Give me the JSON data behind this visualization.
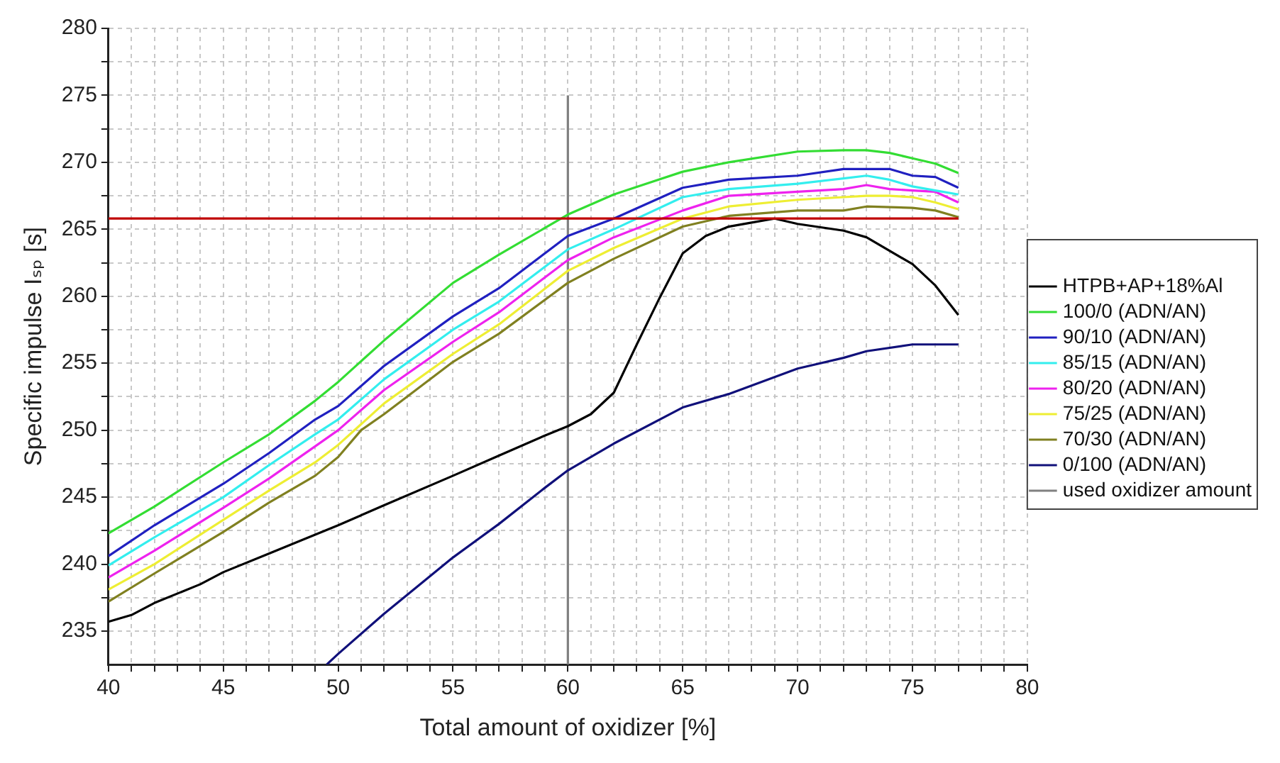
{
  "chart_data": {
    "type": "line",
    "xlabel": "Total amount of oxidizer [%]",
    "ylabel": "Specific impulse Iₛₚ [s]",
    "xlim": [
      40,
      80
    ],
    "ylim": [
      232.5,
      280
    ],
    "xticks": [
      40,
      {
        "value": 41,
        "label": null
      },
      {
        "value": 42,
        "label": null
      },
      {
        "value": 43,
        "label": null
      },
      {
        "value": 44,
        "label": null
      },
      45,
      {
        "value": 46,
        "label": null
      },
      {
        "value": 47,
        "label": null
      },
      {
        "value": 48,
        "label": null
      },
      {
        "value": 49,
        "label": null
      },
      50,
      {
        "value": 51,
        "label": null
      },
      {
        "value": 52,
        "label": null
      },
      {
        "value": 53,
        "label": null
      },
      {
        "value": 54,
        "label": null
      },
      55,
      {
        "value": 56,
        "label": null
      },
      {
        "value": 57,
        "label": null
      },
      {
        "value": 58,
        "label": null
      },
      {
        "value": 59,
        "label": null
      },
      60,
      {
        "value": 61,
        "label": null
      },
      {
        "value": 62,
        "label": null
      },
      {
        "value": 63,
        "label": null
      },
      {
        "value": 64,
        "label": null
      },
      65,
      {
        "value": 66,
        "label": null
      },
      {
        "value": 67,
        "label": null
      },
      {
        "value": 68,
        "label": null
      },
      {
        "value": 69,
        "label": null
      },
      70,
      {
        "value": 71,
        "label": null
      },
      {
        "value": 72,
        "label": null
      },
      {
        "value": 73,
        "label": null
      },
      {
        "value": 74,
        "label": null
      },
      75,
      {
        "value": 76,
        "label": null
      },
      {
        "value": 77,
        "label": null
      },
      {
        "value": 78,
        "label": null
      },
      {
        "value": 79,
        "label": null
      },
      80
    ],
    "yticks": [
      235,
      {
        "value": 237.5,
        "label": null
      },
      240,
      {
        "value": 242.5,
        "label": null
      },
      245,
      {
        "value": 247.5,
        "label": null
      },
      250,
      {
        "value": 252.5,
        "label": null
      },
      255,
      {
        "value": 257.5,
        "label": null
      },
      260,
      {
        "value": 262.5,
        "label": null
      },
      265,
      {
        "value": 267.5,
        "label": null
      },
      270,
      {
        "value": 272.5,
        "label": null
      },
      275,
      {
        "value": 277.5,
        "label": null
      },
      280
    ],
    "grid": true,
    "legend": "right",
    "marker": "none",
    "series": [
      {
        "color": "#c00000",
        "x": [
          40,
          77
        ],
        "values": [
          265.8,
          265.8
        ]
      },
      {
        "name": "HTPB+AP+18%Al",
        "color": "#000000",
        "x": [
          40,
          41,
          42,
          44,
          45,
          47,
          50,
          52,
          55,
          57,
          59,
          60,
          61,
          62,
          63,
          64,
          65,
          66,
          67,
          68,
          69,
          70,
          72,
          73,
          75,
          76,
          77
        ],
        "values": [
          235.7,
          236.2,
          237.1,
          238.5,
          239.4,
          240.8,
          242.9,
          244.4,
          246.6,
          248.1,
          249.6,
          250.3,
          251.2,
          252.8,
          256.4,
          259.9,
          263.2,
          264.5,
          265.2,
          265.5,
          265.8,
          265.4,
          264.9,
          264.4,
          262.4,
          260.8,
          258.6
        ]
      },
      {
        "name": "100/0 (ADN/AN)",
        "color": "#33dd33",
        "x": [
          40,
          42,
          45,
          47,
          49,
          50,
          52,
          55,
          57,
          60,
          62,
          65,
          67,
          70,
          72,
          73,
          74,
          75,
          76,
          77
        ],
        "values": [
          242.3,
          244.3,
          247.6,
          249.7,
          252.2,
          253.6,
          256.7,
          261.0,
          263.1,
          266.1,
          267.6,
          269.3,
          270.0,
          270.8,
          270.9,
          270.9,
          270.7,
          270.3,
          269.9,
          269.2
        ]
      },
      {
        "name": "90/10 (ADN/AN)",
        "color": "#2020c0",
        "x": [
          40,
          42,
          45,
          47,
          49,
          50,
          52,
          55,
          57,
          60,
          62,
          65,
          67,
          70,
          72,
          73,
          74,
          75,
          76,
          77
        ],
        "values": [
          240.6,
          242.9,
          246.0,
          248.3,
          250.8,
          251.8,
          254.8,
          258.5,
          260.6,
          264.5,
          265.8,
          268.1,
          268.7,
          269.0,
          269.5,
          269.5,
          269.5,
          269.0,
          268.9,
          268.1
        ]
      },
      {
        "name": "85/15 (ADN/AN)",
        "color": "#33eeee",
        "x": [
          40,
          42,
          45,
          47,
          49,
          50,
          52,
          55,
          57,
          60,
          62,
          65,
          67,
          70,
          72,
          73,
          74,
          75,
          76,
          77
        ],
        "values": [
          239.9,
          242.0,
          245.0,
          247.4,
          249.7,
          250.8,
          253.8,
          257.5,
          259.6,
          263.5,
          265.0,
          267.4,
          268.0,
          268.4,
          268.8,
          269.0,
          268.7,
          268.2,
          267.9,
          267.6
        ]
      },
      {
        "name": "80/20 (ADN/AN)",
        "color": "#ee22ee",
        "x": [
          40,
          42,
          45,
          47,
          49,
          50,
          52,
          55,
          57,
          60,
          62,
          65,
          67,
          70,
          72,
          73,
          74,
          75,
          76,
          77
        ],
        "values": [
          239.0,
          241.0,
          244.2,
          246.4,
          248.8,
          250.0,
          253.0,
          256.6,
          258.8,
          262.7,
          264.4,
          266.4,
          267.5,
          267.8,
          268.0,
          268.3,
          268.0,
          267.9,
          267.8,
          267.0
        ]
      },
      {
        "name": "75/25 (ADN/AN)",
        "color": "#eeee33",
        "x": [
          40,
          42,
          45,
          47,
          49,
          50,
          52,
          55,
          57,
          60,
          62,
          65,
          67,
          70,
          72,
          73,
          74,
          75,
          76,
          77
        ],
        "values": [
          238.1,
          240.0,
          243.3,
          245.5,
          247.6,
          248.9,
          252.0,
          255.7,
          257.9,
          261.9,
          263.6,
          265.8,
          266.7,
          267.2,
          267.4,
          267.5,
          267.5,
          267.4,
          267.0,
          266.5
        ]
      },
      {
        "name": "70/30 (ADN/AN)",
        "color": "#808020",
        "x": [
          40,
          42,
          45,
          47,
          49,
          50,
          51,
          52,
          55,
          57,
          60,
          62,
          65,
          67,
          70,
          72,
          73,
          75,
          76,
          77
        ],
        "values": [
          237.2,
          239.3,
          242.4,
          244.6,
          246.6,
          248.0,
          250.0,
          251.2,
          255.1,
          257.2,
          261.0,
          262.8,
          265.2,
          266.0,
          266.4,
          266.4,
          266.7,
          266.6,
          266.4,
          265.9
        ]
      },
      {
        "name": "0/100 (ADN/AN)",
        "color": "#10107a",
        "x": [
          49.5,
          50,
          52,
          55,
          57,
          59,
          60,
          62,
          65,
          67,
          70,
          72,
          73,
          75,
          77
        ],
        "values": [
          232.5,
          233.3,
          236.3,
          240.5,
          243.0,
          245.7,
          247.0,
          249.0,
          251.7,
          252.7,
          254.6,
          255.4,
          255.9,
          256.4,
          256.4
        ]
      },
      {
        "name": "used oxidizer amount",
        "color": "#808080",
        "x": [
          60,
          60
        ],
        "values": [
          232.5,
          275
        ]
      }
    ]
  }
}
